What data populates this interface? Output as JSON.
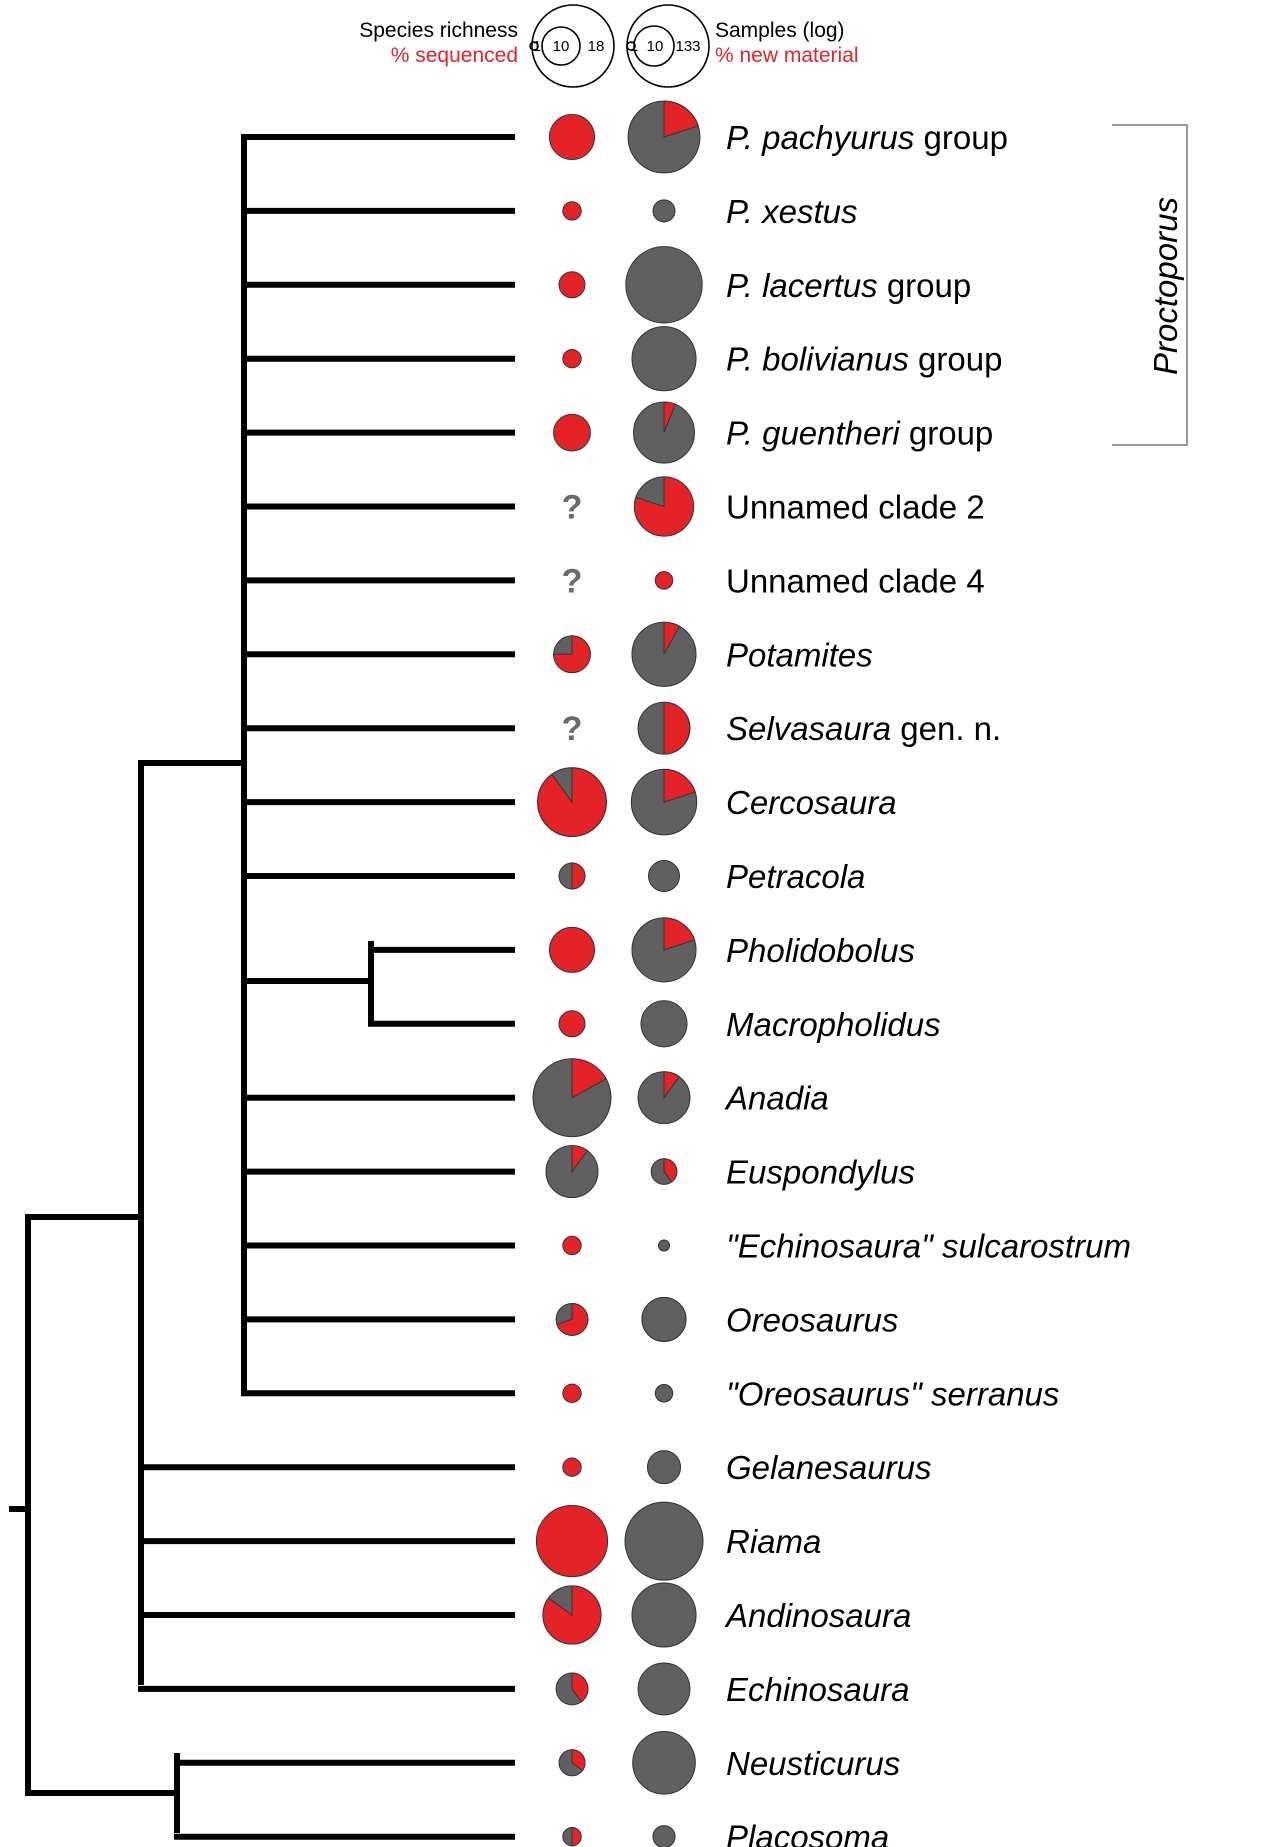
{
  "colors": {
    "red": "#e42328",
    "gray": "#606060",
    "pie_stroke": "#333333"
  },
  "legend": {
    "left_title": "Species richness",
    "left_subtitle": "% sequenced",
    "left_scale": [
      "1",
      "10",
      "18"
    ],
    "right_title": "Samples (log)",
    "right_subtitle": "% new material",
    "right_scale": [
      "1",
      "10",
      "133"
    ]
  },
  "bracket_label": "Proctoporus",
  "unknown_mark": "?",
  "taxa": [
    {
      "parts": [
        {
          "t": "P. pachyurus",
          "i": true
        },
        {
          "t": " group",
          "i": false
        }
      ],
      "richness": 6,
      "pct_sequenced": 100,
      "samples": 90,
      "pct_new": 20
    },
    {
      "parts": [
        {
          "t": "P. xestus",
          "i": true
        }
      ],
      "richness": 1,
      "pct_sequenced": 100,
      "samples": 3,
      "pct_new": 0
    },
    {
      "parts": [
        {
          "t": "P. lacertus",
          "i": true
        },
        {
          "t": " group",
          "i": false
        }
      ],
      "richness": 2,
      "pct_sequenced": 100,
      "samples": 120,
      "pct_new": 0
    },
    {
      "parts": [
        {
          "t": "P. bolivianus",
          "i": true
        },
        {
          "t": " group",
          "i": false
        }
      ],
      "richness": 1,
      "pct_sequenced": 100,
      "samples": 55,
      "pct_new": 0
    },
    {
      "parts": [
        {
          "t": "P. guentheri",
          "i": true
        },
        {
          "t": " group",
          "i": false
        }
      ],
      "richness": 4,
      "pct_sequenced": 100,
      "samples": 45,
      "pct_new": 6
    },
    {
      "parts": [
        {
          "t": "Unnamed clade 2",
          "i": false
        }
      ],
      "richness": null,
      "pct_sequenced": null,
      "samples": 40,
      "pct_new": 80
    },
    {
      "parts": [
        {
          "t": "Unnamed clade 4",
          "i": false
        }
      ],
      "richness": null,
      "pct_sequenced": null,
      "samples": 2,
      "pct_new": 100
    },
    {
      "parts": [
        {
          "t": "Potamites",
          "i": true
        }
      ],
      "richness": 4,
      "pct_sequenced": 75,
      "samples": 55,
      "pct_new": 8
    },
    {
      "parts": [
        {
          "t": "Selvasaura",
          "i": true
        },
        {
          "t": " gen. n.",
          "i": false
        }
      ],
      "richness": null,
      "pct_sequenced": null,
      "samples": 25,
      "pct_new": 50
    },
    {
      "parts": [
        {
          "t": "Cercosaura",
          "i": true
        }
      ],
      "richness": 14,
      "pct_sequenced": 90,
      "samples": 60,
      "pct_new": 20
    },
    {
      "parts": [
        {
          "t": "Petracola",
          "i": true
        }
      ],
      "richness": 2,
      "pct_sequenced": 50,
      "samples": 6,
      "pct_new": 0
    },
    {
      "parts": [
        {
          "t": "Pholidobolus",
          "i": true
        }
      ],
      "richness": 6,
      "pct_sequenced": 100,
      "samples": 55,
      "pct_new": 20
    },
    {
      "parts": [
        {
          "t": "Macropholidus",
          "i": true
        }
      ],
      "richness": 2,
      "pct_sequenced": 100,
      "samples": 17,
      "pct_new": 0
    },
    {
      "parts": [
        {
          "t": "Anadia",
          "i": true
        }
      ],
      "richness": 18,
      "pct_sequenced": 17,
      "samples": 25,
      "pct_new": 10
    },
    {
      "parts": [
        {
          "t": "Euspondylus",
          "i": true
        }
      ],
      "richness": 8,
      "pct_sequenced": 10,
      "samples": 4,
      "pct_new": 40
    },
    {
      "parts": [
        {
          "t": "\"Echinosaura\" sulcarostrum",
          "i": true
        }
      ],
      "richness": 1,
      "pct_sequenced": 100,
      "samples": 1,
      "pct_new": 0
    },
    {
      "parts": [
        {
          "t": "Oreosaurus",
          "i": true
        }
      ],
      "richness": 3,
      "pct_sequenced": 70,
      "samples": 15,
      "pct_new": 0
    },
    {
      "parts": [
        {
          "t": "\"Oreosaurus\" serranus",
          "i": true
        }
      ],
      "richness": 1,
      "pct_sequenced": 100,
      "samples": 2,
      "pct_new": 0
    },
    {
      "parts": [
        {
          "t": "Gelanesaurus",
          "i": true
        }
      ],
      "richness": 1,
      "pct_sequenced": 100,
      "samples": 7,
      "pct_new": 0
    },
    {
      "parts": [
        {
          "t": "Riama",
          "i": true
        }
      ],
      "richness": 15,
      "pct_sequenced": 100,
      "samples": 133,
      "pct_new": 0
    },
    {
      "parts": [
        {
          "t": "Andinosaura",
          "i": true
        }
      ],
      "richness": 10,
      "pct_sequenced": 85,
      "samples": 55,
      "pct_new": 0
    },
    {
      "parts": [
        {
          "t": "Echinosaura",
          "i": true
        }
      ],
      "richness": 3,
      "pct_sequenced": 40,
      "samples": 25,
      "pct_new": 0
    },
    {
      "parts": [
        {
          "t": "Neusticurus",
          "i": true
        }
      ],
      "richness": 2,
      "pct_sequenced": 35,
      "samples": 50,
      "pct_new": 0
    },
    {
      "parts": [
        {
          "t": "Placosoma",
          "i": true
        }
      ],
      "richness": 1,
      "pct_sequenced": 50,
      "samples": 3,
      "pct_new": 0
    }
  ]
}
